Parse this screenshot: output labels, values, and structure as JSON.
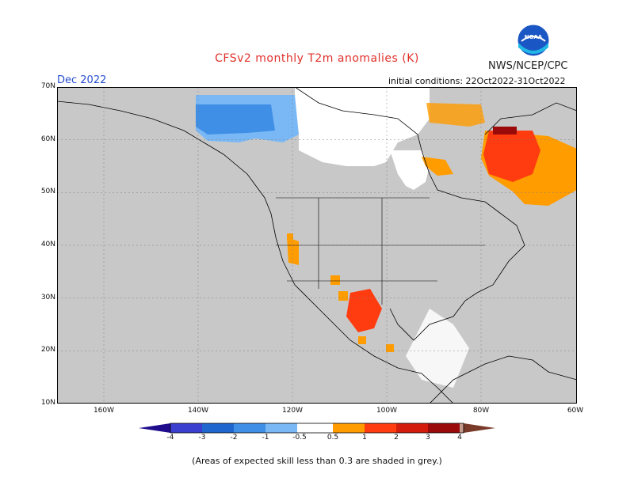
{
  "header": {
    "title": "CFSv2 monthly T2m anomalies (K)",
    "org": "NWS/NCEP/CPC",
    "logo_text": "NOAA",
    "month": "Dec 2022",
    "init_conditions": "initial conditions: 22Oct2022-31Oct2022"
  },
  "map": {
    "lat_labels": [
      "70N",
      "60N",
      "50N",
      "40N",
      "30N",
      "20N",
      "10N"
    ],
    "lon_labels": [
      "160W",
      "140W",
      "120W",
      "100W",
      "80W",
      "60W"
    ],
    "background_color": "#c8c8c8",
    "land_line_color": "#000000"
  },
  "colorbar": {
    "labels": [
      "-4",
      "-3",
      "-2",
      "-1",
      "-0.5",
      "0.5",
      "1",
      "2",
      "3",
      "4"
    ],
    "colors": [
      "#1e0c8c",
      "#3b3fcf",
      "#1f66cf",
      "#3f8fe6",
      "#7ab8f5",
      "#ffffff",
      "#ff9c00",
      "#ff3c10",
      "#d41c0c",
      "#9a0a0a",
      "#c49a8c",
      "#7a3a2a"
    ]
  },
  "footnote": "(Areas of expected skill less than 0.3 are shaded in grey.)"
}
